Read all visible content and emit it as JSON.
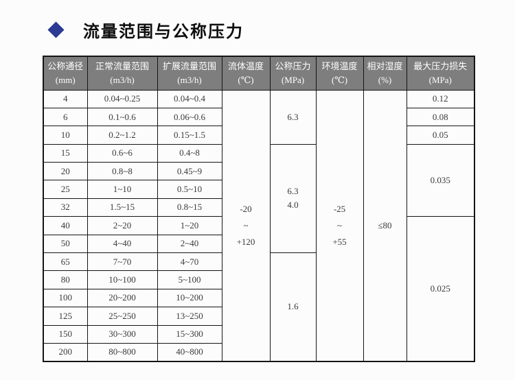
{
  "title": {
    "text": "流量范围与公称压力",
    "bullet_icon": "diamond-icon",
    "bullet_color": "#2b3a92"
  },
  "table": {
    "header_bg": "#7e7e7e",
    "header_text_color": "#ffffff",
    "columns": [
      {
        "label": "公称通径",
        "unit": "(mm)"
      },
      {
        "label": "正常流量范围",
        "unit": "(m3/h)"
      },
      {
        "label": "扩展流量范围",
        "unit": "(m3/h)"
      },
      {
        "label": "流体温度",
        "unit": "(℃)"
      },
      {
        "label": "公称压力",
        "unit": "(MPa)"
      },
      {
        "label": "环境温度",
        "unit": "(℃)"
      },
      {
        "label": "相对湿度",
        "unit": "(%)"
      },
      {
        "label": "最大压力损失",
        "unit": "(MPa)"
      }
    ],
    "rows": [
      {
        "cells": [
          {
            "text": "4"
          },
          {
            "text": "0.04~0.25"
          },
          {
            "text": "0.04~0.4"
          },
          {
            "text": "-20\n~\n+120",
            "rowspan": 15,
            "tall": true
          },
          {
            "text": "6.3",
            "rowspan": 3
          },
          {
            "text": "-25\n~\n+55",
            "rowspan": 15,
            "tall": true
          },
          {
            "text": "≤80",
            "rowspan": 15
          },
          {
            "text": "0.12"
          }
        ]
      },
      {
        "cells": [
          {
            "text": "6"
          },
          {
            "text": "0.1~0.6"
          },
          {
            "text": "0.06~0.6"
          },
          {
            "text": "0.08"
          }
        ]
      },
      {
        "cells": [
          {
            "text": "10"
          },
          {
            "text": "0.2~1.2"
          },
          {
            "text": "0.15~1.5"
          },
          {
            "text": "0.05"
          }
        ]
      },
      {
        "cells": [
          {
            "text": "15"
          },
          {
            "text": "0.6~6"
          },
          {
            "text": "0.4~8"
          },
          {
            "text": "6.3\n4.0",
            "rowspan": 6
          },
          {
            "text": "0.035",
            "rowspan": 4
          }
        ]
      },
      {
        "cells": [
          {
            "text": "20"
          },
          {
            "text": "0.8~8"
          },
          {
            "text": "0.45~9"
          }
        ]
      },
      {
        "cells": [
          {
            "text": "25"
          },
          {
            "text": "1~10"
          },
          {
            "text": "0.5~10"
          }
        ]
      },
      {
        "cells": [
          {
            "text": "32"
          },
          {
            "text": "1.5~15"
          },
          {
            "text": "0.8~15"
          }
        ]
      },
      {
        "cells": [
          {
            "text": "40"
          },
          {
            "text": "2~20"
          },
          {
            "text": "1~20"
          },
          {
            "text": "0.025",
            "rowspan": 8
          }
        ]
      },
      {
        "cells": [
          {
            "text": "50"
          },
          {
            "text": "4~40"
          },
          {
            "text": "2~40"
          }
        ]
      },
      {
        "cells": [
          {
            "text": "65"
          },
          {
            "text": "7~70"
          },
          {
            "text": "4~70"
          },
          {
            "text": "1.6",
            "rowspan": 6
          }
        ]
      },
      {
        "cells": [
          {
            "text": "80"
          },
          {
            "text": "10~100"
          },
          {
            "text": "5~100"
          }
        ]
      },
      {
        "cells": [
          {
            "text": "100"
          },
          {
            "text": "20~200"
          },
          {
            "text": "10~200"
          }
        ]
      },
      {
        "cells": [
          {
            "text": "125"
          },
          {
            "text": "25~250"
          },
          {
            "text": "13~250"
          }
        ]
      },
      {
        "cells": [
          {
            "text": "150"
          },
          {
            "text": "30~300"
          },
          {
            "text": "15~300"
          }
        ]
      },
      {
        "cells": [
          {
            "text": "200"
          },
          {
            "text": "80~800"
          },
          {
            "text": "40~800"
          }
        ]
      }
    ]
  }
}
